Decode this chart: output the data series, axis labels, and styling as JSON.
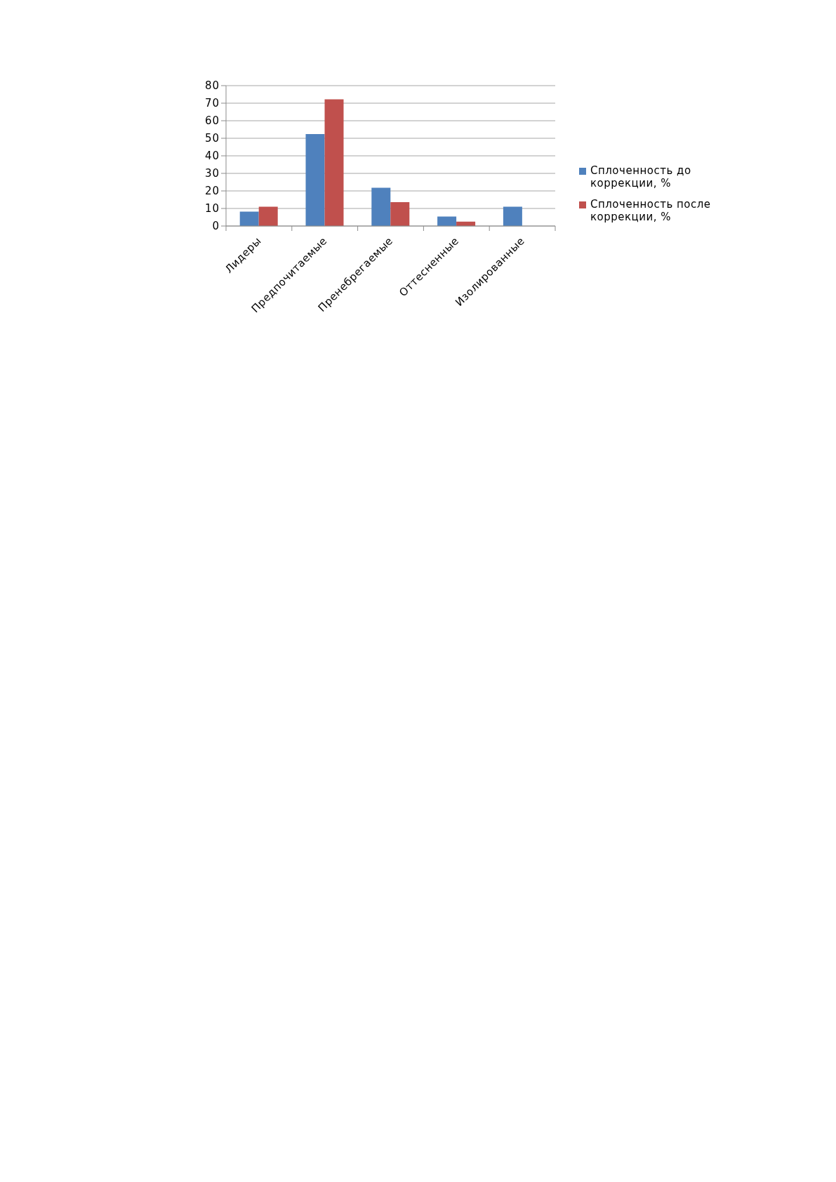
{
  "chart_data": {
    "type": "bar",
    "categories": [
      "Лидеры",
      "Предпочитаемые",
      "Пренебрегаемые",
      "Оттесненные",
      "Изолированные"
    ],
    "series": [
      {
        "name": "Сплоченность до коррекции, %",
        "color": "#4f81bd",
        "values": [
          8.2,
          52.4,
          21.8,
          5.4,
          11
        ]
      },
      {
        "name": "Сплоченность после коррекции, %",
        "color": "#c0504d",
        "values": [
          11,
          72.2,
          13.6,
          2.5,
          0
        ]
      }
    ],
    "ylim": [
      0,
      80
    ],
    "yticks": [
      0,
      10,
      20,
      30,
      40,
      50,
      60,
      70,
      80
    ],
    "grid": "y",
    "legend": "right"
  }
}
